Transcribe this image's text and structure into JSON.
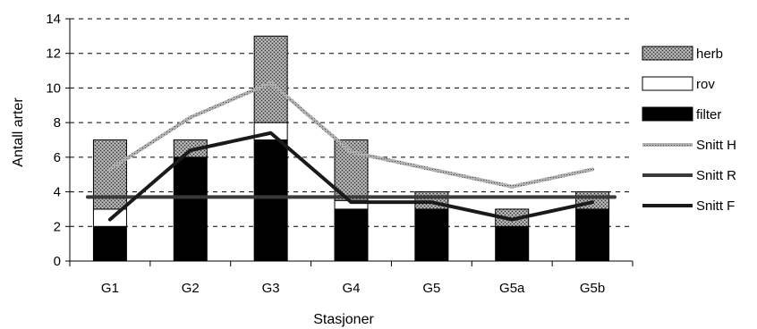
{
  "chart_data": {
    "type": "bar",
    "stacked": true,
    "xlabel": "Stasjoner",
    "ylabel": "Antall arter",
    "ylim": [
      0,
      14
    ],
    "yticks": [
      0,
      2,
      4,
      6,
      8,
      10,
      12,
      14
    ],
    "grid": "horizontal dashed",
    "legend_position": "right",
    "categories": [
      "G1",
      "G2",
      "G3",
      "G4",
      "G5",
      "G5a",
      "G5b"
    ],
    "bar_series": [
      {
        "name": "filter",
        "values": [
          2,
          6,
          7,
          3,
          3,
          2,
          3
        ]
      },
      {
        "name": "rov",
        "values": [
          1,
          0,
          1,
          0.5,
          0,
          0,
          0
        ]
      },
      {
        "name": "herb",
        "values": [
          4,
          1,
          5,
          3.5,
          1,
          1,
          1
        ]
      }
    ],
    "line_series": [
      {
        "name": "Snitt H",
        "values": [
          5.3,
          8.3,
          10.3,
          6.3,
          5.3,
          4.3,
          5.3
        ]
      },
      {
        "name": "Snitt R",
        "values": [
          3.7,
          3.7,
          3.7,
          3.7,
          3.7,
          3.7,
          3.7
        ]
      },
      {
        "name": "Snitt F",
        "values": [
          2.4,
          6.4,
          7.4,
          3.4,
          3.4,
          2.4,
          3.4
        ]
      }
    ],
    "colors": {
      "filter": "#000000",
      "rov": "#ffffff",
      "herb": "#8a8a8a",
      "Snitt H": "#9a9a9a",
      "Snitt R": "#3a3a3a",
      "Snitt F": "#1a1a1a"
    }
  }
}
